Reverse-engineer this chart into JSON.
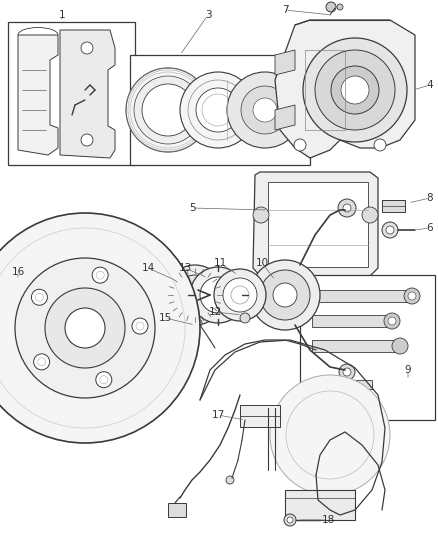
{
  "bg_color": "#ffffff",
  "line_color": "#3a3a3a",
  "label_color": "#333333",
  "fig_width": 4.38,
  "fig_height": 5.33,
  "dpi": 100
}
